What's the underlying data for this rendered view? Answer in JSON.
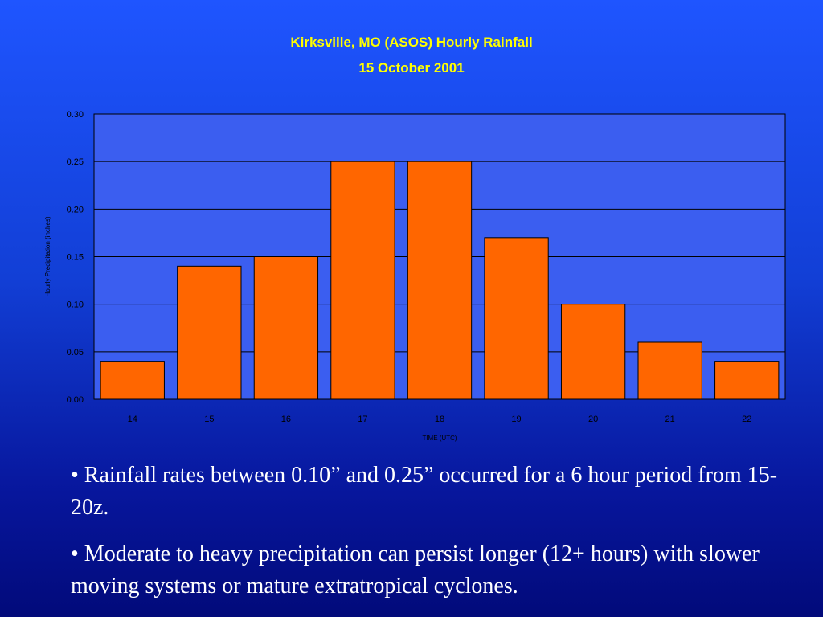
{
  "slide": {
    "bullets": [
      "• Rainfall rates between 0.10” and 0.25” occurred for a 6 hour period from 15-20z.",
      "• Moderate to heavy precipitation can persist longer (12+ hours) with slower moving systems or mature extratropical cyclones."
    ]
  },
  "colors": {
    "background_top": "#1f55ff",
    "background_bottom": "#020a7a",
    "plot_area": "#3b5ef0",
    "bar_fill": "#ff6600",
    "title": "#ffff00",
    "bullet_text": "#ffffff"
  },
  "chart_data": {
    "type": "bar",
    "title": "Kirksville, MO (ASOS) Hourly Rainfall",
    "subtitle": "15 October 2001",
    "xlabel": "TIME (UTC)",
    "ylabel": "Hourly Precipitation (inches)",
    "categories": [
      "14",
      "15",
      "16",
      "17",
      "18",
      "19",
      "20",
      "21",
      "22"
    ],
    "values": [
      0.04,
      0.14,
      0.15,
      0.25,
      0.25,
      0.17,
      0.1,
      0.06,
      0.04
    ],
    "ylim": [
      0,
      0.3
    ],
    "yticks": [
      "0.00",
      "0.05",
      "0.10",
      "0.15",
      "0.20",
      "0.25",
      "0.30"
    ],
    "grid": true,
    "legend": "none"
  }
}
